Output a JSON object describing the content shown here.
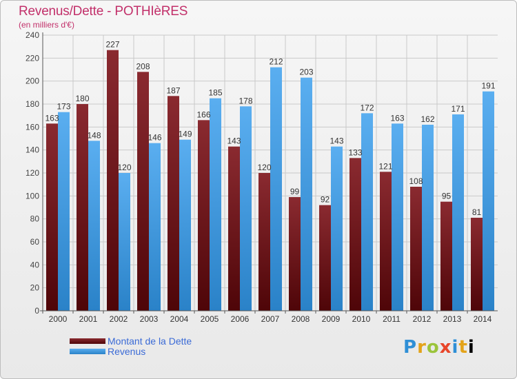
{
  "title": "Revenus/Dette - POTHIèRES",
  "subtitle": "(en milliers d'€)",
  "legend": {
    "debt_label": "Montant de la Dette",
    "revenue_label": "Revenus"
  },
  "logo": "Proxiti",
  "colors": {
    "debt": "#7b1c20",
    "revenue": "#3f9ae0",
    "title": "#c2306a",
    "legend_text": "#3a6ad6"
  },
  "chart_data": {
    "type": "bar",
    "title": "Revenus/Dette - POTHIèRES",
    "subtitle": "(en milliers d'€)",
    "categories": [
      "2000",
      "2001",
      "2002",
      "2003",
      "2004",
      "2005",
      "2006",
      "2007",
      "2008",
      "2009",
      "2010",
      "2011",
      "2012",
      "2013",
      "2014"
    ],
    "series": [
      {
        "name": "Montant de la Dette",
        "values": [
          163,
          180,
          227,
          208,
          187,
          166,
          143,
          120,
          99,
          92,
          133,
          121,
          108,
          95,
          81
        ]
      },
      {
        "name": "Revenus",
        "values": [
          173,
          148,
          120,
          146,
          149,
          185,
          178,
          212,
          203,
          143,
          172,
          163,
          162,
          171,
          191
        ]
      }
    ],
    "ylim": [
      0,
      240
    ],
    "yticks": [
      0,
      20,
      40,
      60,
      80,
      100,
      120,
      140,
      160,
      180,
      200,
      220,
      240
    ],
    "grid": true,
    "legend_position": "bottom-left"
  }
}
